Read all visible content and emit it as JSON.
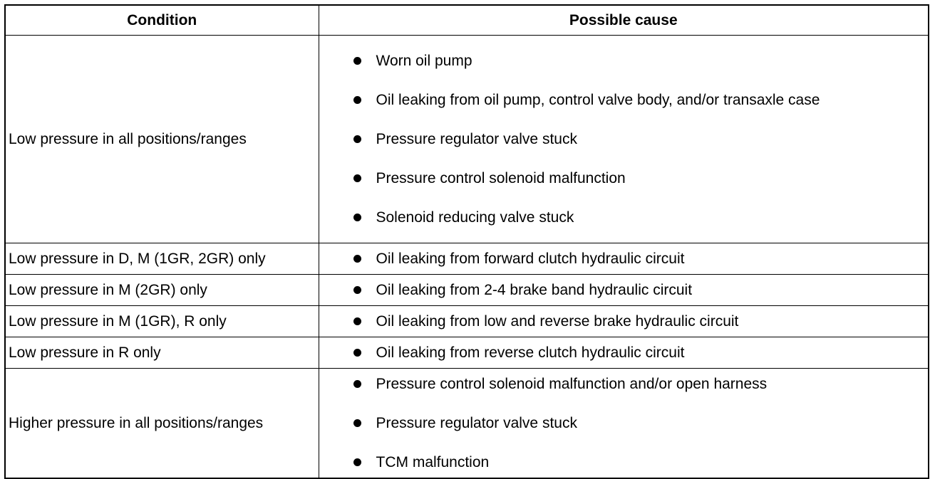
{
  "table": {
    "header": [
      "Condition",
      "Possible cause"
    ],
    "rows": [
      {
        "condition": "Low pressure in all positions/ranges",
        "causes": [
          "Worn oil pump",
          "Oil leaking from oil pump, control valve body, and/or transaxle case",
          "Pressure regulator valve stuck",
          "Pressure control solenoid malfunction",
          "Solenoid reducing valve stuck"
        ]
      },
      {
        "condition": "Low pressure in D, M (1GR, 2GR) only",
        "causes": [
          "Oil leaking from forward clutch hydraulic circuit"
        ]
      },
      {
        "condition": "Low pressure in M (2GR) only",
        "causes": [
          "Oil leaking from 2-4 brake band hydraulic circuit"
        ]
      },
      {
        "condition": "Low pressure in M (1GR), R only",
        "causes": [
          "Oil leaking from low and reverse brake hydraulic circuit"
        ]
      },
      {
        "condition": "Low pressure in R only",
        "causes": [
          "Oil leaking from reverse clutch hydraulic circuit"
        ]
      },
      {
        "condition": "Higher pressure in all positions/ranges",
        "causes": [
          "Pressure control solenoid malfunction and/or open harness",
          "Pressure regulator valve stuck",
          "TCM malfunction"
        ]
      }
    ]
  }
}
